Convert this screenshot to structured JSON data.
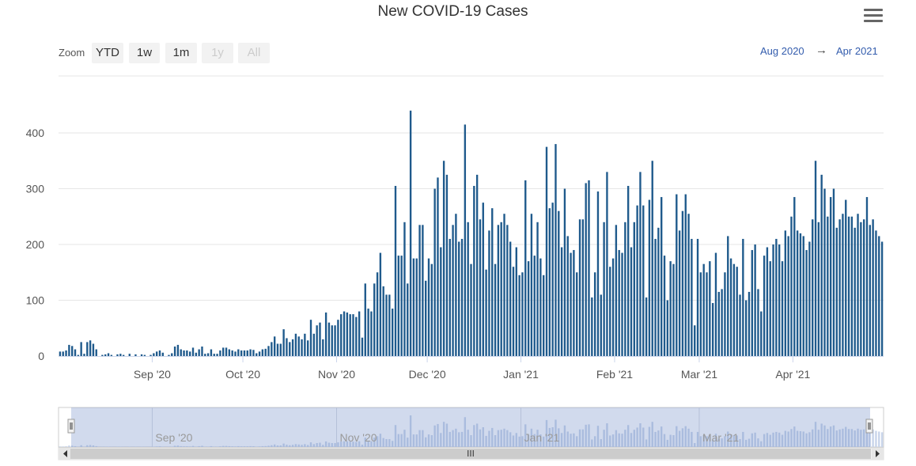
{
  "chart_data": {
    "type": "bar",
    "title": "New COVID-19 Cases",
    "xlabel": "",
    "ylabel": "",
    "x_start": "2020-08-01",
    "x_end": "2021-04-30",
    "ylim": [
      0,
      500
    ],
    "y_ticks": [
      "0",
      "100",
      "200",
      "300",
      "400"
    ],
    "x_ticks": [
      "Sep '20",
      "Oct '20",
      "Nov '20",
      "Dec '20",
      "Jan '21",
      "Feb '21",
      "Mar '21",
      "Apr '21"
    ],
    "navigator_ticks": [
      "Sep '20",
      "Nov '20",
      "Jan '21",
      "Mar '21"
    ],
    "bar_color": "#1f5a8c",
    "grid": true,
    "values": [
      8,
      8,
      10,
      20,
      18,
      12,
      2,
      25,
      4,
      25,
      28,
      22,
      12,
      0,
      2,
      3,
      5,
      2,
      0,
      3,
      4,
      2,
      0,
      4,
      0,
      3,
      0,
      3,
      2,
      0,
      2,
      5,
      8,
      10,
      6,
      0,
      2,
      5,
      17,
      20,
      12,
      10,
      10,
      8,
      15,
      6,
      12,
      17,
      4,
      5,
      12,
      4,
      4,
      10,
      15,
      15,
      12,
      10,
      8,
      12,
      10,
      10,
      10,
      12,
      11,
      5,
      8,
      12,
      13,
      18,
      25,
      35,
      22,
      22,
      48,
      32,
      25,
      30,
      40,
      35,
      30,
      40,
      28,
      65,
      40,
      55,
      60,
      30,
      78,
      60,
      55,
      55,
      65,
      75,
      80,
      78,
      75,
      75,
      70,
      80,
      33,
      130,
      85,
      80,
      130,
      150,
      185,
      125,
      110,
      110,
      85,
      305,
      180,
      180,
      240,
      130,
      440,
      175,
      175,
      235,
      235,
      135,
      175,
      165,
      300,
      320,
      195,
      350,
      325,
      210,
      235,
      255,
      205,
      210,
      415,
      240,
      165,
      305,
      325,
      245,
      275,
      155,
      225,
      265,
      165,
      235,
      240,
      255,
      235,
      205,
      160,
      195,
      145,
      150,
      315,
      170,
      255,
      180,
      240,
      175,
      145,
      375,
      265,
      275,
      380,
      260,
      195,
      300,
      215,
      185,
      190,
      150,
      245,
      245,
      310,
      315,
      105,
      150,
      295,
      110,
      240,
      330,
      160,
      175,
      235,
      190,
      185,
      240,
      305,
      195,
      240,
      270,
      330,
      270,
      105,
      280,
      350,
      210,
      230,
      285,
      180,
      100,
      170,
      165,
      290,
      225,
      260,
      290,
      255,
      210,
      55,
      210,
      150,
      165,
      150,
      170,
      95,
      185,
      115,
      120,
      150,
      215,
      175,
      165,
      160,
      110,
      210,
      100,
      115,
      190,
      200,
      120,
      80,
      180,
      195,
      170,
      200,
      210,
      200,
      170,
      225,
      215,
      250,
      285,
      225,
      220,
      215,
      190,
      205,
      245,
      350,
      240,
      325,
      300,
      250,
      285,
      300,
      230,
      245,
      255,
      280,
      250,
      250,
      230,
      255,
      240,
      245,
      285,
      235,
      245,
      225,
      215,
      205
    ]
  },
  "toolbar": {
    "zoom_label": "Zoom",
    "buttons": [
      "YTD",
      "1w",
      "1m",
      "1y",
      "All"
    ],
    "disabled": [
      "1y",
      "All"
    ]
  },
  "range": {
    "from": "Aug 2020",
    "arrow": "→",
    "to": "Apr 2021"
  },
  "scrollbar": {
    "grip": "III"
  }
}
